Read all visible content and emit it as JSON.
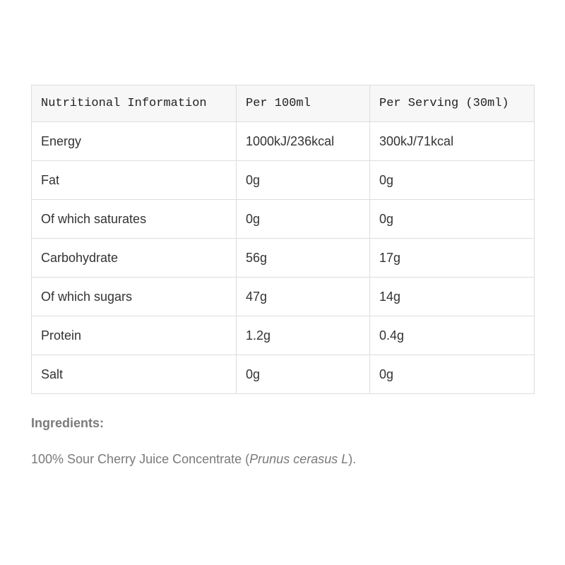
{
  "table": {
    "header": [
      "Nutritional Information",
      "Per 100ml",
      "Per Serving (30ml)"
    ],
    "rows": [
      [
        "Energy",
        "1000kJ/236kcal",
        "300kJ/71kcal"
      ],
      [
        "Fat",
        "0g",
        "0g"
      ],
      [
        "Of which saturates",
        "0g",
        "0g"
      ],
      [
        "Carbohydrate",
        "56g",
        "17g"
      ],
      [
        "Of which sugars",
        "47g",
        "14g"
      ],
      [
        "Protein",
        "1.2g",
        "0.4g"
      ],
      [
        "Salt",
        "0g",
        "0g"
      ]
    ]
  },
  "ingredients": {
    "heading": "Ingredients:",
    "text": [
      "100% Sour Cherry Juice Concentrate (",
      "Prunus cerasus L",
      ")."
    ]
  }
}
